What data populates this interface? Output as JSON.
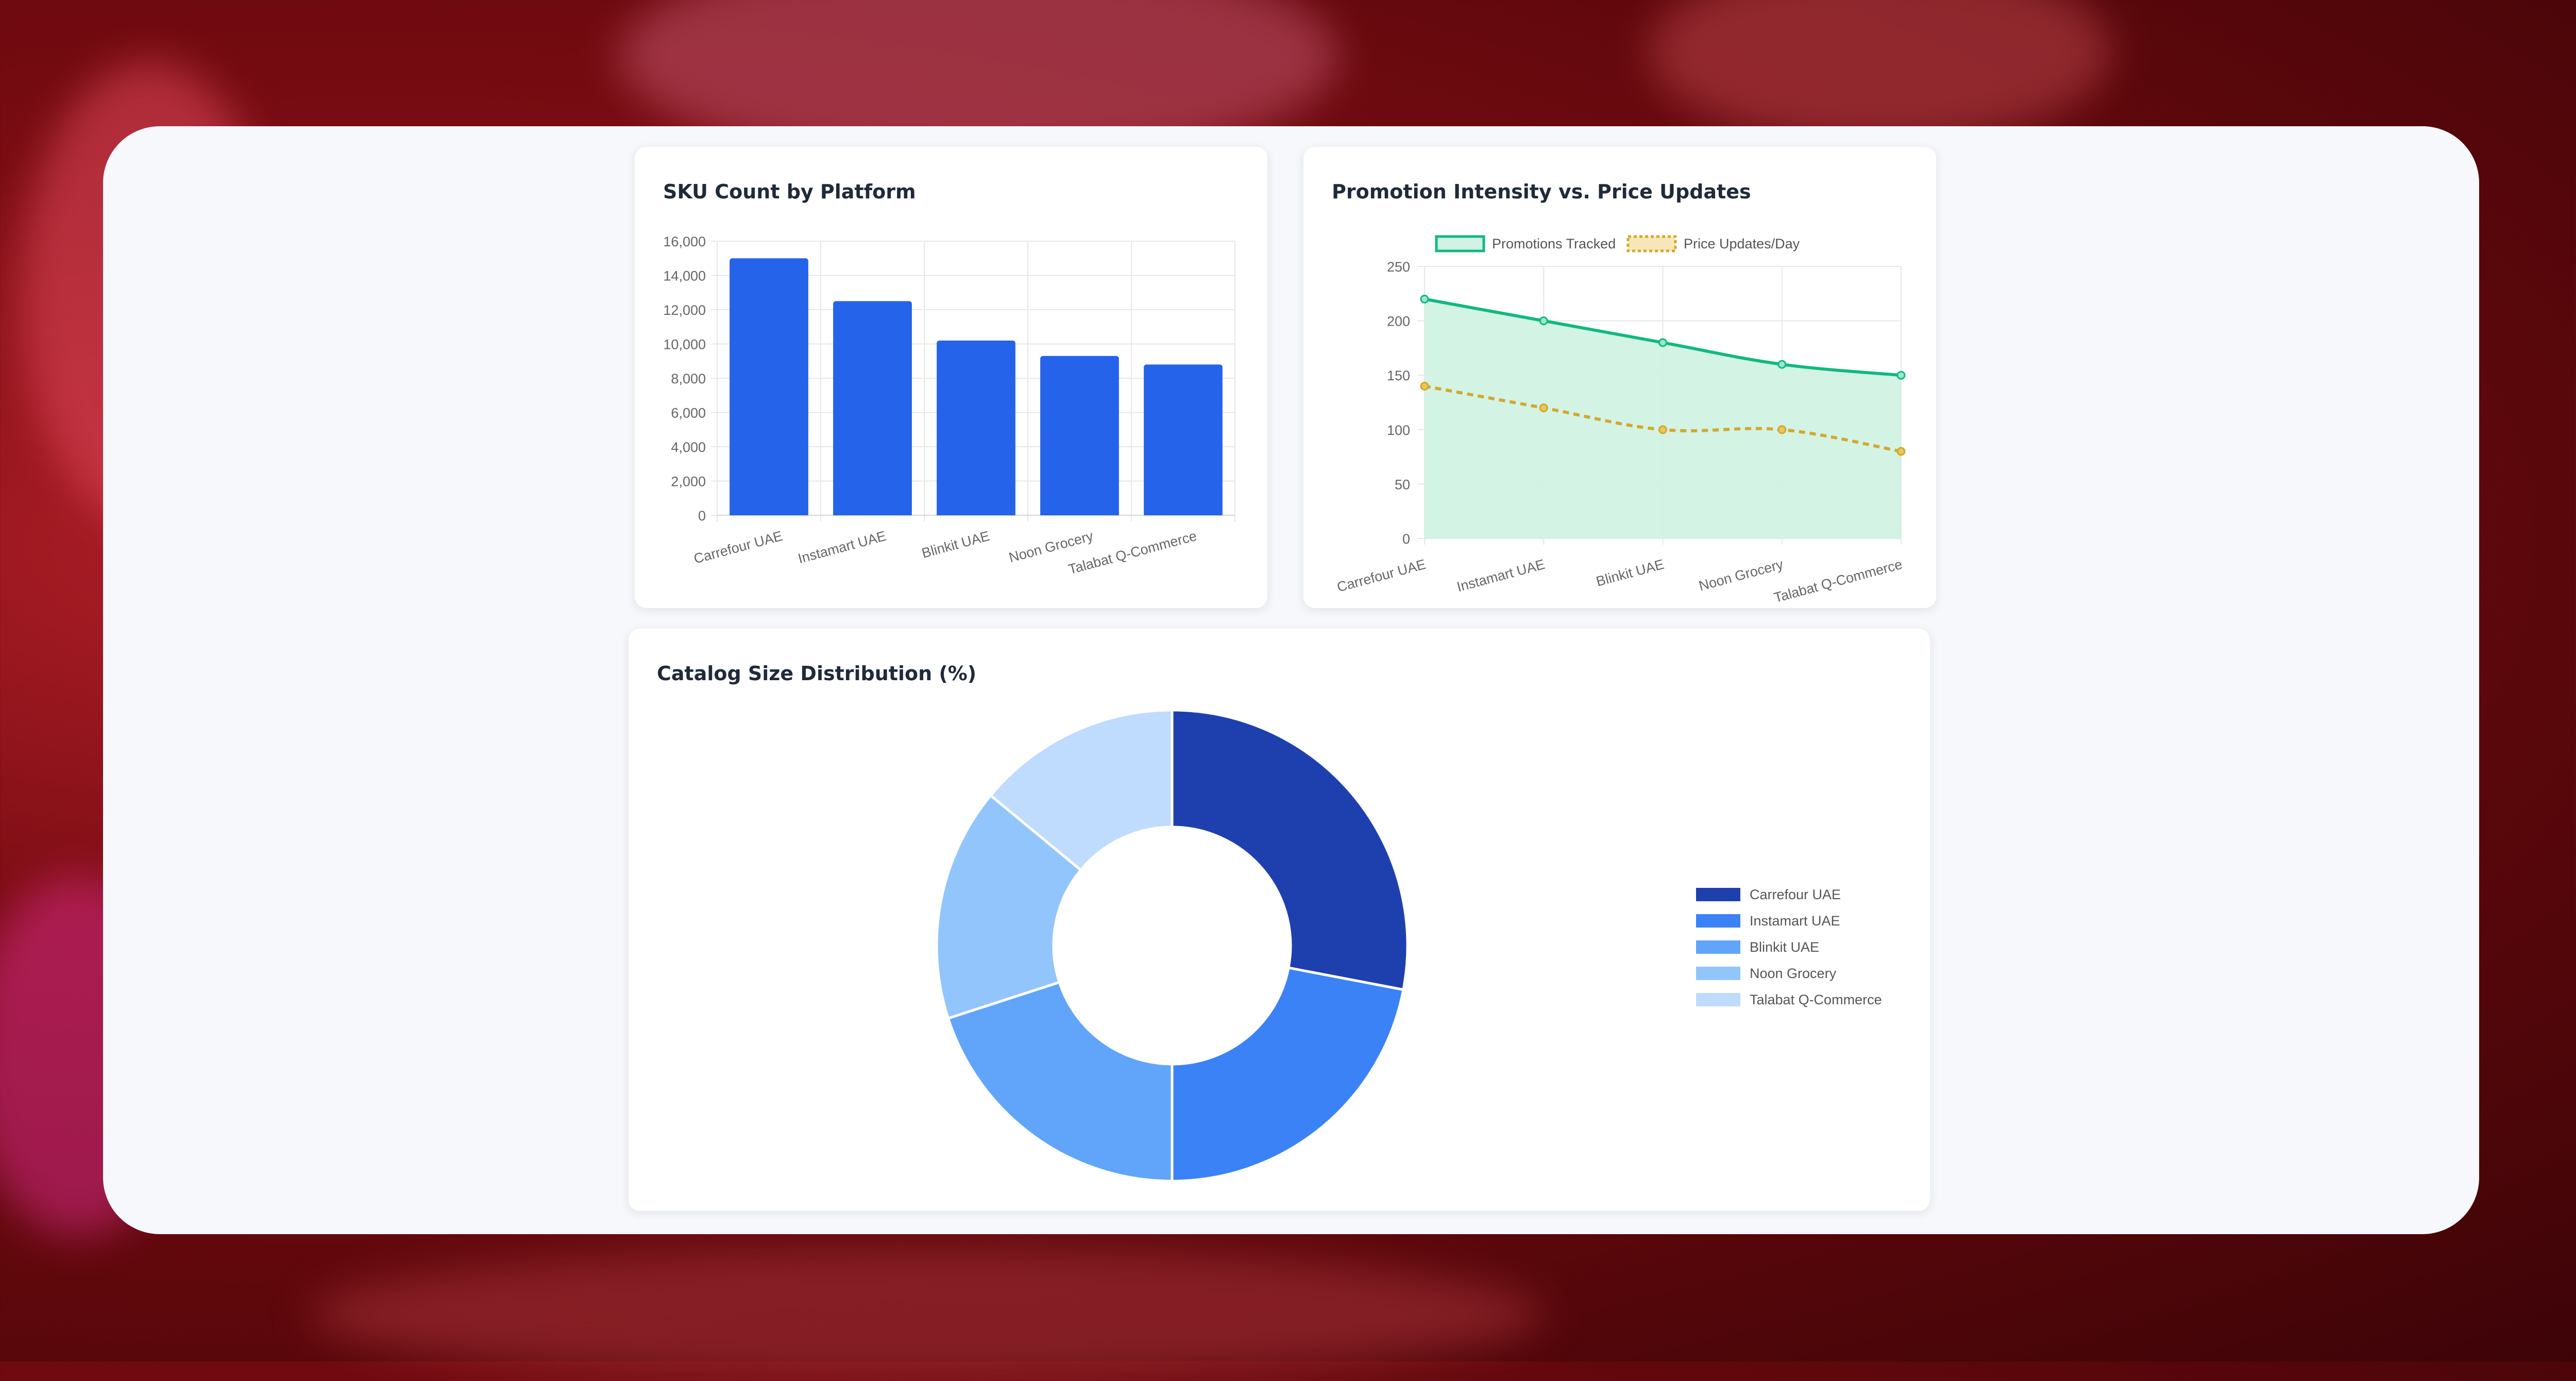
{
  "panels": {
    "sku": {
      "title": "SKU Count by Platform"
    },
    "promo": {
      "title": "Promotion Intensity vs. Price Updates"
    },
    "catalog": {
      "title": "Catalog Size Distribution (%)"
    }
  },
  "colors": {
    "bar": "#2563eb",
    "promotions": "#10b981",
    "promotions_fill": "#d1f2e4",
    "price_updates": "#d4a72c",
    "donut": [
      "#1e40af",
      "#3b82f6",
      "#60a5fa",
      "#93c5fd",
      "#bfdbfe"
    ]
  },
  "chart_data": [
    {
      "type": "bar",
      "title": "SKU Count by Platform",
      "categories": [
        "Carrefour UAE",
        "Instamart UAE",
        "Blinkit UAE",
        "Noon Grocery",
        "Talabat Q-Commerce"
      ],
      "values": [
        15000,
        12500,
        10200,
        9300,
        8800
      ],
      "ylim": [
        0,
        16000
      ],
      "yticks": [
        "0",
        "2,000",
        "4,000",
        "6,000",
        "8,000",
        "10,000",
        "12,000",
        "14,000",
        "16,000"
      ],
      "grid": true
    },
    {
      "type": "line",
      "title": "Promotion Intensity vs. Price Updates",
      "categories": [
        "Carrefour UAE",
        "Instamart UAE",
        "Blinkit UAE",
        "Noon Grocery",
        "Talabat Q-Commerce"
      ],
      "series": [
        {
          "name": "Promotions Tracked",
          "values": [
            220,
            200,
            180,
            160,
            150
          ],
          "style": "solid-filled"
        },
        {
          "name": "Price Updates/Day",
          "values": [
            140,
            120,
            100,
            100,
            80
          ],
          "style": "dashed"
        }
      ],
      "ylim": [
        0,
        250
      ],
      "yticks": [
        "0",
        "50",
        "100",
        "150",
        "200",
        "250"
      ],
      "legend": "top",
      "grid": true
    },
    {
      "type": "pie",
      "title": "Catalog Size Distribution (%)",
      "categories": [
        "Carrefour UAE",
        "Instamart UAE",
        "Blinkit UAE",
        "Noon Grocery",
        "Talabat Q-Commerce"
      ],
      "values": [
        28,
        22,
        20,
        16,
        14
      ],
      "donut": true,
      "legend": "right"
    }
  ]
}
